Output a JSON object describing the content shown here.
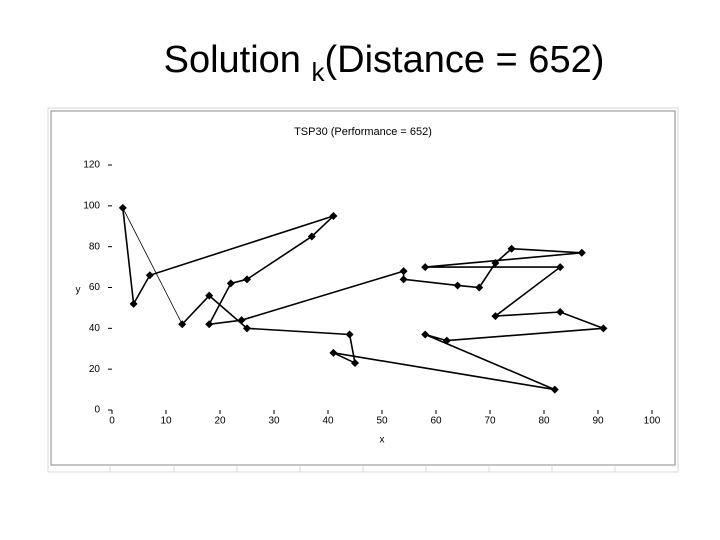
{
  "slide_title": {
    "main": "Solution ",
    "subscript": "k",
    "rest": "(Distance = 652)"
  },
  "chart_data": {
    "type": "line",
    "title": "TSP30 (Performance = 652)",
    "x_label": "x",
    "y_label": "y",
    "x": [
      2,
      4,
      7,
      41,
      37,
      25,
      22,
      18,
      24,
      54,
      54,
      64,
      68,
      71,
      74,
      87,
      58,
      83,
      71,
      83,
      91,
      62,
      58,
      82,
      41,
      45,
      44,
      25,
      18,
      13
    ],
    "series": [
      {
        "name": "tour",
        "color": "#000000",
        "values": [
          99,
          52,
          66,
          95,
          85,
          64,
          62,
          42,
          44,
          68,
          64,
          61,
          60,
          72,
          79,
          77,
          70,
          70,
          46,
          48,
          40,
          34,
          37,
          10,
          28,
          23,
          37,
          40,
          56,
          42
        ]
      }
    ],
    "closed": true,
    "xlim": [
      0,
      100
    ],
    "xticks": [
      0,
      10,
      20,
      30,
      40,
      50,
      60,
      70,
      80,
      90,
      100
    ],
    "ylim": [
      0,
      120
    ],
    "yticks": [
      0,
      20,
      40,
      60,
      80,
      100,
      120
    ]
  }
}
